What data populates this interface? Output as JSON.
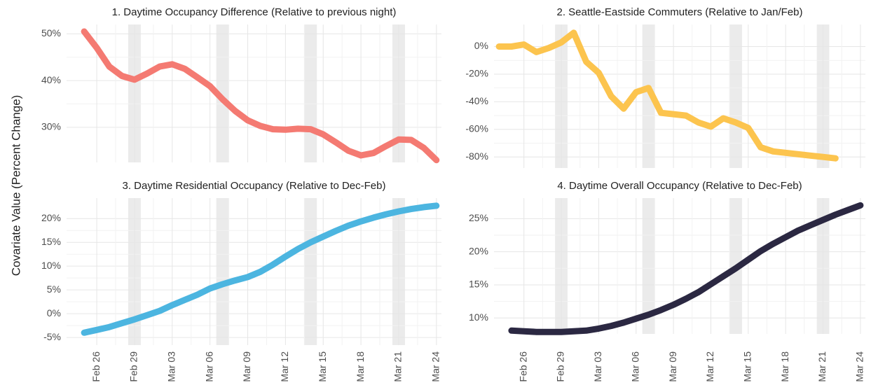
{
  "ylabel": "Covariate Value (Percent Change)",
  "chart_data": [
    {
      "type": "line",
      "title": "1. Daytime Occupancy Difference (Relative to previous night)",
      "categories": [
        null,
        null,
        "Feb 26",
        null,
        null,
        "Feb 29",
        null,
        null,
        "Mar 03",
        null,
        null,
        "Mar 06",
        null,
        null,
        "Mar 09",
        null,
        null,
        "Mar 12",
        null,
        null,
        "Mar 15",
        null,
        null,
        "Mar 18",
        null,
        null,
        "Mar 21",
        null,
        null,
        "Mar 24"
      ],
      "values": [
        null,
        50.5,
        47,
        43,
        41,
        40.2,
        41.5,
        43,
        43.5,
        42.5,
        40.7,
        38.8,
        36,
        33.5,
        31.5,
        30.3,
        29.6,
        29.5,
        29.7,
        29.6,
        28.5,
        26.8,
        25,
        24,
        24.5,
        26,
        27.4,
        27.3,
        25.6,
        23
      ],
      "color": "#f47a72",
      "ylim": [
        22.5,
        52
      ],
      "yticks": [
        {
          "value": 30,
          "label": "30%"
        },
        {
          "value": 40,
          "label": "40%"
        },
        {
          "value": 50,
          "label": "50%"
        }
      ],
      "grid": true,
      "xticklabels": false
    },
    {
      "type": "line",
      "title": "2. Seattle-Eastside Commuters (Relative to Jan/Feb)",
      "categories": [
        null,
        null,
        "Feb 26",
        null,
        null,
        "Feb 29",
        null,
        null,
        "Mar 03",
        null,
        null,
        "Mar 06",
        null,
        null,
        "Mar 09",
        null,
        null,
        "Mar 12",
        null,
        null,
        "Mar 15",
        null,
        null,
        "Mar 18",
        null,
        null,
        "Mar 21",
        null,
        null,
        "Mar 24"
      ],
      "values": [
        0,
        0,
        1.5,
        -4,
        -1,
        3,
        10,
        -11,
        -19,
        -36,
        -45,
        -33,
        -30,
        -48,
        -49,
        -50,
        -55,
        -58,
        -52,
        -55,
        -59,
        -73,
        -76,
        -77,
        -78,
        -79,
        -80,
        -81,
        null,
        null
      ],
      "color": "#fcc44e",
      "ylim": [
        -88,
        16
      ],
      "yticks": [
        {
          "value": -80,
          "label": "-80%"
        },
        {
          "value": -60,
          "label": "-60%"
        },
        {
          "value": -40,
          "label": "-40%"
        },
        {
          "value": -20,
          "label": "-20%"
        },
        {
          "value": 0,
          "label": "0%"
        }
      ],
      "grid": true,
      "xticklabels": false
    },
    {
      "type": "line",
      "title": "3. Daytime Residential Occupancy (Relative to Dec-Feb)",
      "categories": [
        null,
        null,
        "Feb 26",
        null,
        null,
        "Feb 29",
        null,
        null,
        "Mar 03",
        null,
        null,
        "Mar 06",
        null,
        null,
        "Mar 09",
        null,
        null,
        "Mar 12",
        null,
        null,
        "Mar 15",
        null,
        null,
        "Mar 18",
        null,
        null,
        "Mar 21",
        null,
        null,
        "Mar 24"
      ],
      "values": [
        null,
        -4,
        -3.4,
        -2.8,
        -2,
        -1.2,
        -0.3,
        0.6,
        1.8,
        2.9,
        4,
        5.3,
        6.2,
        7,
        7.7,
        8.8,
        10.3,
        12,
        13.6,
        15,
        16.2,
        17.4,
        18.5,
        19.4,
        20.2,
        20.9,
        21.5,
        22,
        22.4,
        22.7
      ],
      "color": "#4cb5e0",
      "ylim": [
        -6.6,
        24.3
      ],
      "yticks": [
        {
          "value": -5,
          "label": "-5%"
        },
        {
          "value": 0,
          "label": "0%"
        },
        {
          "value": 5,
          "label": "5%"
        },
        {
          "value": 10,
          "label": "10%"
        },
        {
          "value": 15,
          "label": "15%"
        },
        {
          "value": 20,
          "label": "20%"
        }
      ],
      "grid": true,
      "xticklabels": true
    },
    {
      "type": "line",
      "title": "4. Daytime Overall Occupancy (Relative to Dec-Feb)",
      "categories": [
        null,
        null,
        "Feb 26",
        null,
        null,
        "Feb 29",
        null,
        null,
        "Mar 03",
        null,
        null,
        "Mar 06",
        null,
        null,
        "Mar 09",
        null,
        null,
        "Mar 12",
        null,
        null,
        "Mar 15",
        null,
        null,
        "Mar 18",
        null,
        null,
        "Mar 21",
        null,
        null,
        "Mar 24"
      ],
      "values": [
        null,
        8.1,
        8,
        7.9,
        7.9,
        7.9,
        8,
        8.1,
        8.4,
        8.8,
        9.3,
        9.9,
        10.5,
        11.2,
        12,
        12.9,
        13.9,
        15.1,
        16.3,
        17.5,
        18.8,
        20.1,
        21.2,
        22.2,
        23.2,
        24,
        24.8,
        25.6,
        26.3,
        27
      ],
      "color": "#2b2842",
      "ylim": [
        7.6,
        28.1
      ],
      "yticks": [
        {
          "value": 10,
          "label": "10%"
        },
        {
          "value": 15,
          "label": "15%"
        },
        {
          "value": 20,
          "label": "20%"
        },
        {
          "value": 25,
          "label": "25%"
        }
      ],
      "grid": true,
      "xticklabels": true
    }
  ]
}
